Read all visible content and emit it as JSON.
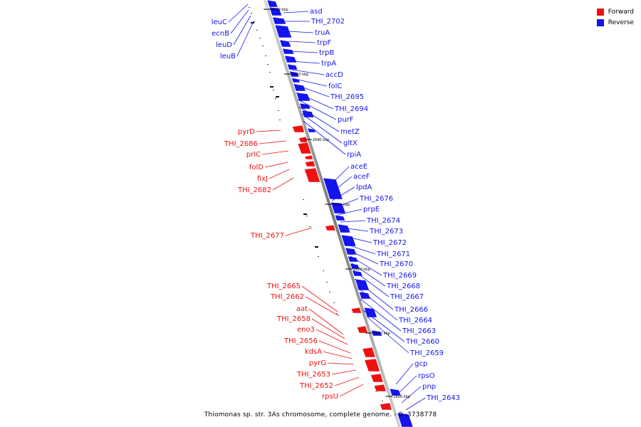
{
  "legend": {
    "forward_label": "Forward",
    "reverse_label": "Reverse",
    "forward_color": "#ee1111",
    "reverse_color": "#1414ee"
  },
  "caption": "Thiomonas sp. str. 3As chromosome, complete genome. - 0..3738778",
  "kbp_ticks": [
    "2660 kbp",
    "2650 kbp",
    "2640 kbp",
    "2630 kbp",
    "2620 kbp",
    "2610 kbp",
    "2600 kbp"
  ],
  "genes_left_top": [
    "leuC",
    "ecnB",
    "leuD",
    "leuB"
  ],
  "genes_forward": [
    "pyrD",
    "THI_2686",
    "prlC",
    "folD",
    "fixJ",
    "THI_2682",
    "THI_2677",
    "THI_2665",
    "THI_2662",
    "aat",
    "THI_2658",
    "eno3",
    "THI_2656",
    "kdsA",
    "pyrG",
    "THI_2653",
    "THI_2652",
    "rpsU"
  ],
  "genes_reverse": [
    "asd",
    "THI_2702",
    "truA",
    "trpF",
    "trpB",
    "trpA",
    "accD",
    "folC",
    "THI_2695",
    "THI_2694",
    "purF",
    "metZ",
    "gltX",
    "rpiA",
    "aceE",
    "aceF",
    "lpdA",
    "THI_2676",
    "prpE",
    "THI_2674",
    "THI_2673",
    "THI_2672",
    "THI_2671",
    "THI_2670",
    "THI_2669",
    "THI_2668",
    "THI_2667",
    "THI_2666",
    "THI_2664",
    "THI_2663",
    "THI_2660",
    "THI_2659",
    "gcp",
    "rpsO",
    "pnp",
    "THI_2643"
  ]
}
